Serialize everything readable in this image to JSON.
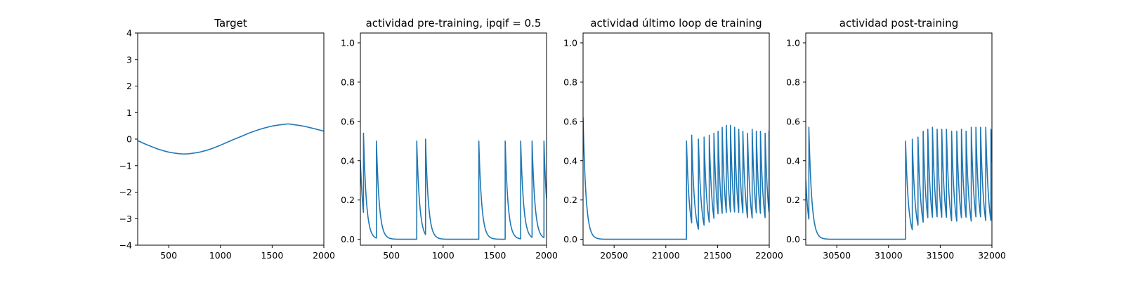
{
  "chart_data": [
    {
      "type": "line",
      "title": "Target",
      "xlabel": "",
      "ylabel": "",
      "xlim": [
        200,
        2000
      ],
      "ylim": [
        -4,
        4
      ],
      "xticks": [
        500,
        1000,
        1500,
        2000
      ],
      "yticks": [
        -4,
        -3,
        -2,
        -1,
        0,
        1,
        2,
        3,
        4
      ],
      "grid": false,
      "color": "#1f77b4",
      "series": [
        {
          "x": [
            200,
            300,
            400,
            500,
            600,
            655,
            700,
            800,
            900,
            1000,
            1100,
            1200,
            1300,
            1400,
            1500,
            1600,
            1655,
            1700,
            1800,
            1900,
            2000
          ],
          "y": [
            -0.06,
            -0.23,
            -0.38,
            -0.49,
            -0.55,
            -0.56,
            -0.55,
            -0.49,
            -0.38,
            -0.23,
            -0.06,
            0.1,
            0.26,
            0.39,
            0.49,
            0.55,
            0.57,
            0.55,
            0.49,
            0.4,
            0.3
          ]
        }
      ]
    },
    {
      "type": "line",
      "title": "actividad pre-training, ipqif = 0.5",
      "xlabel": "",
      "ylabel": "",
      "xlim": [
        200,
        2000
      ],
      "ylim": [
        -0.03,
        1.05
      ],
      "xticks": [
        500,
        1000,
        1500,
        2000
      ],
      "yticks": [
        0.0,
        0.2,
        0.4,
        0.6,
        0.8,
        1.0
      ],
      "grid": false,
      "color": "#1f77b4",
      "series": [
        {
          "start_value": 0.4,
          "spikes": [
            {
              "x": 230,
              "peak": 0.54
            },
            {
              "x": 355,
              "peak": 0.5
            },
            {
              "x": 745,
              "peak": 0.5
            },
            {
              "x": 830,
              "peak": 0.51
            },
            {
              "x": 1345,
              "peak": 0.5
            },
            {
              "x": 1600,
              "peak": 0.5
            },
            {
              "x": 1750,
              "peak": 0.5
            },
            {
              "x": 1860,
              "peak": 0.5
            },
            {
              "x": 1975,
              "peak": 0.5
            }
          ],
          "baseline": 0.0
        }
      ]
    },
    {
      "type": "line",
      "title": "actividad último loop de training",
      "xlabel": "",
      "ylabel": "",
      "xlim": [
        20200,
        22000
      ],
      "ylim": [
        -0.03,
        1.05
      ],
      "xticks": [
        20500,
        21000,
        21500,
        22000
      ],
      "yticks": [
        0.0,
        0.2,
        0.4,
        0.6,
        0.8,
        1.0
      ],
      "grid": false,
      "color": "#1f77b4",
      "series": [
        {
          "start_value": 0.62,
          "spikes": [
            {
              "x": 21200,
              "peak": 0.5
            },
            {
              "x": 21250,
              "peak": 0.53
            },
            {
              "x": 21315,
              "peak": 0.51
            },
            {
              "x": 21370,
              "peak": 0.52
            },
            {
              "x": 21420,
              "peak": 0.53
            },
            {
              "x": 21465,
              "peak": 0.54
            },
            {
              "x": 21505,
              "peak": 0.55
            },
            {
              "x": 21545,
              "peak": 0.57
            },
            {
              "x": 21585,
              "peak": 0.58
            },
            {
              "x": 21625,
              "peak": 0.58
            },
            {
              "x": 21665,
              "peak": 0.57
            },
            {
              "x": 21705,
              "peak": 0.56
            },
            {
              "x": 21745,
              "peak": 0.55
            },
            {
              "x": 21790,
              "peak": 0.54
            },
            {
              "x": 21835,
              "peak": 0.56
            },
            {
              "x": 21875,
              "peak": 0.55
            },
            {
              "x": 21915,
              "peak": 0.55
            },
            {
              "x": 21960,
              "peak": 0.54
            },
            {
              "x": 21998,
              "peak": 0.55
            }
          ],
          "baseline": 0.0
        }
      ]
    },
    {
      "type": "line",
      "title": "actividad post-training",
      "xlabel": "",
      "ylabel": "",
      "xlim": [
        30200,
        32000
      ],
      "ylim": [
        -0.03,
        1.05
      ],
      "xticks": [
        30500,
        31000,
        31500,
        32000
      ],
      "yticks": [
        0.0,
        0.2,
        0.4,
        0.6,
        0.8,
        1.0
      ],
      "grid": false,
      "color": "#1f77b4",
      "series": [
        {
          "start_value": 0.3,
          "spikes": [
            {
              "x": 30230,
              "peak": 0.57
            },
            {
              "x": 31165,
              "peak": 0.5
            },
            {
              "x": 31230,
              "peak": 0.51
            },
            {
              "x": 31285,
              "peak": 0.52
            },
            {
              "x": 31335,
              "peak": 0.55
            },
            {
              "x": 31380,
              "peak": 0.56
            },
            {
              "x": 31425,
              "peak": 0.57
            },
            {
              "x": 31470,
              "peak": 0.56
            },
            {
              "x": 31515,
              "peak": 0.56
            },
            {
              "x": 31560,
              "peak": 0.56
            },
            {
              "x": 31610,
              "peak": 0.55
            },
            {
              "x": 31660,
              "peak": 0.55
            },
            {
              "x": 31705,
              "peak": 0.56
            },
            {
              "x": 31750,
              "peak": 0.55
            },
            {
              "x": 31800,
              "peak": 0.57
            },
            {
              "x": 31845,
              "peak": 0.57
            },
            {
              "x": 31890,
              "peak": 0.57
            },
            {
              "x": 31940,
              "peak": 0.57
            },
            {
              "x": 31990,
              "peak": 0.56
            }
          ],
          "baseline": 0.0
        }
      ]
    }
  ]
}
